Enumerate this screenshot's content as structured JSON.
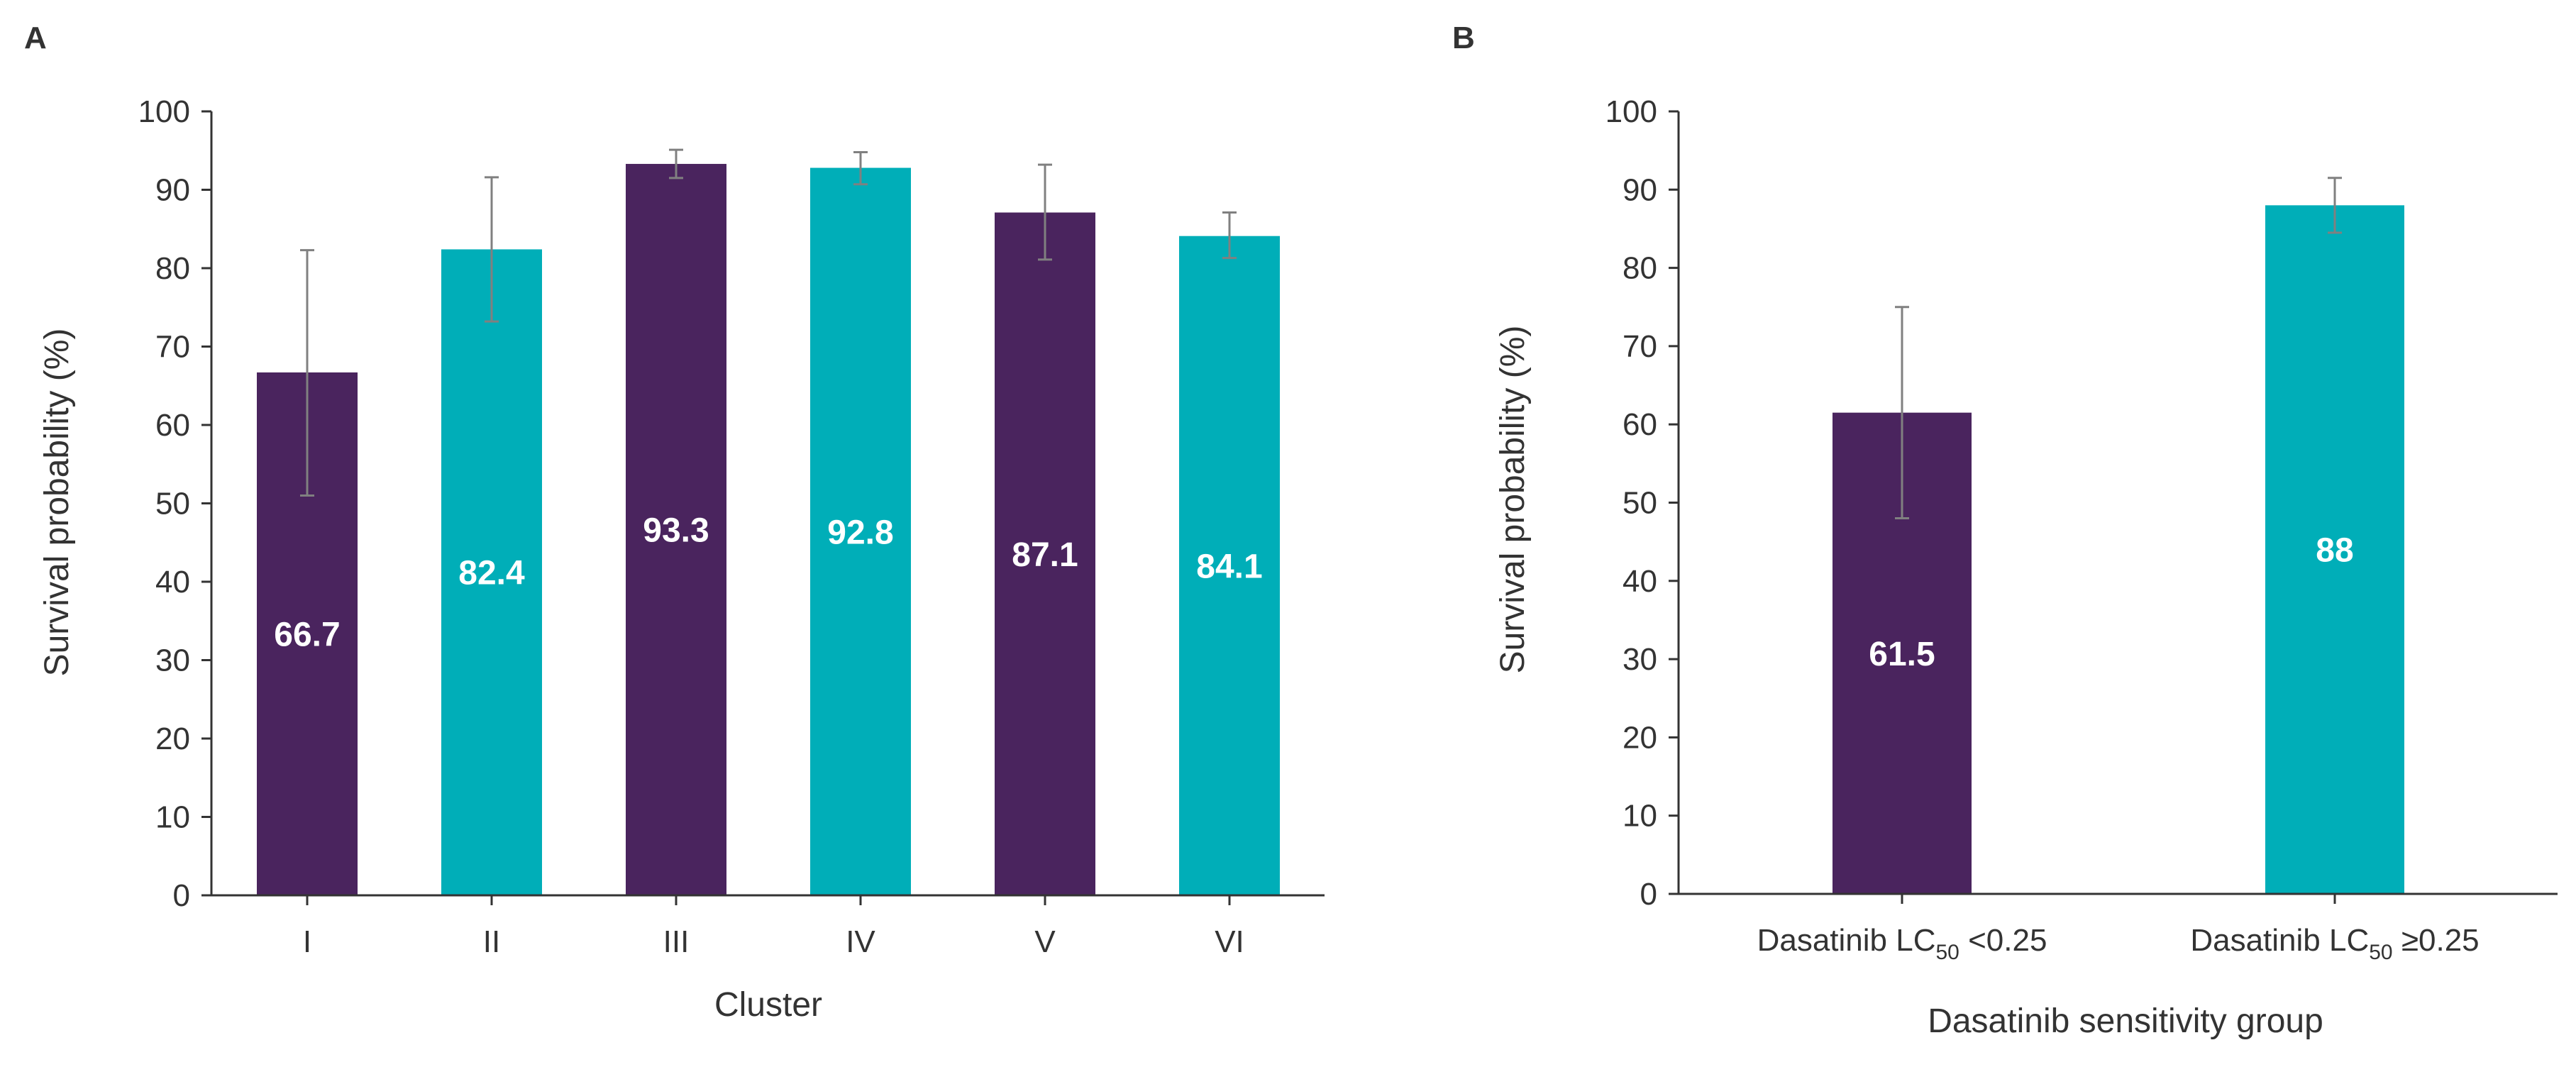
{
  "colors": {
    "purple": "#4a245e",
    "teal": "#00aeb8",
    "error": "#808080",
    "axis": "#333333",
    "label": "#ffffff"
  },
  "chart_data": [
    {
      "panel": "A",
      "type": "bar",
      "xlabel": "Cluster",
      "ylabel": "Survival probability (%)",
      "ylim": [
        0,
        100
      ],
      "ystep": 10,
      "yticks": [
        "0",
        "10",
        "20",
        "30",
        "40",
        "50",
        "60",
        "70",
        "80",
        "90",
        "100"
      ],
      "categories": [
        "I",
        "II",
        "III",
        "IV",
        "V",
        "VI"
      ],
      "values": [
        66.7,
        82.4,
        93.3,
        92.8,
        87.1,
        84.1
      ],
      "value_labels": [
        "66.7",
        "82.4",
        "93.3",
        "92.8",
        "87.1",
        "84.1"
      ],
      "error_low": [
        51,
        73.2,
        91.5,
        90.7,
        81.1,
        81.3
      ],
      "error_high": [
        82.3,
        91.6,
        95.1,
        94.8,
        93.2,
        87.1
      ],
      "bar_colors": [
        "purple",
        "teal",
        "purple",
        "teal",
        "purple",
        "teal"
      ]
    },
    {
      "panel": "B",
      "type": "bar",
      "xlabel": "Dasatinib sensitivity group",
      "ylabel": "Survival probability (%)",
      "ylim": [
        0,
        100
      ],
      "ystep": 10,
      "yticks": [
        "0",
        "10",
        "20",
        "30",
        "40",
        "50",
        "60",
        "70",
        "80",
        "90",
        "100"
      ],
      "categories": [
        {
          "pre": "Dasatinib LC",
          "sub": "50",
          "post": " <0.25"
        },
        {
          "pre": "Dasatinib LC",
          "sub": "50",
          "post": " ≥0.25"
        }
      ],
      "values": [
        61.5,
        88
      ],
      "value_labels": [
        "61.5",
        "88"
      ],
      "error_low": [
        48,
        84.5
      ],
      "error_high": [
        75,
        91.5
      ],
      "bar_colors": [
        "purple",
        "teal"
      ]
    }
  ]
}
